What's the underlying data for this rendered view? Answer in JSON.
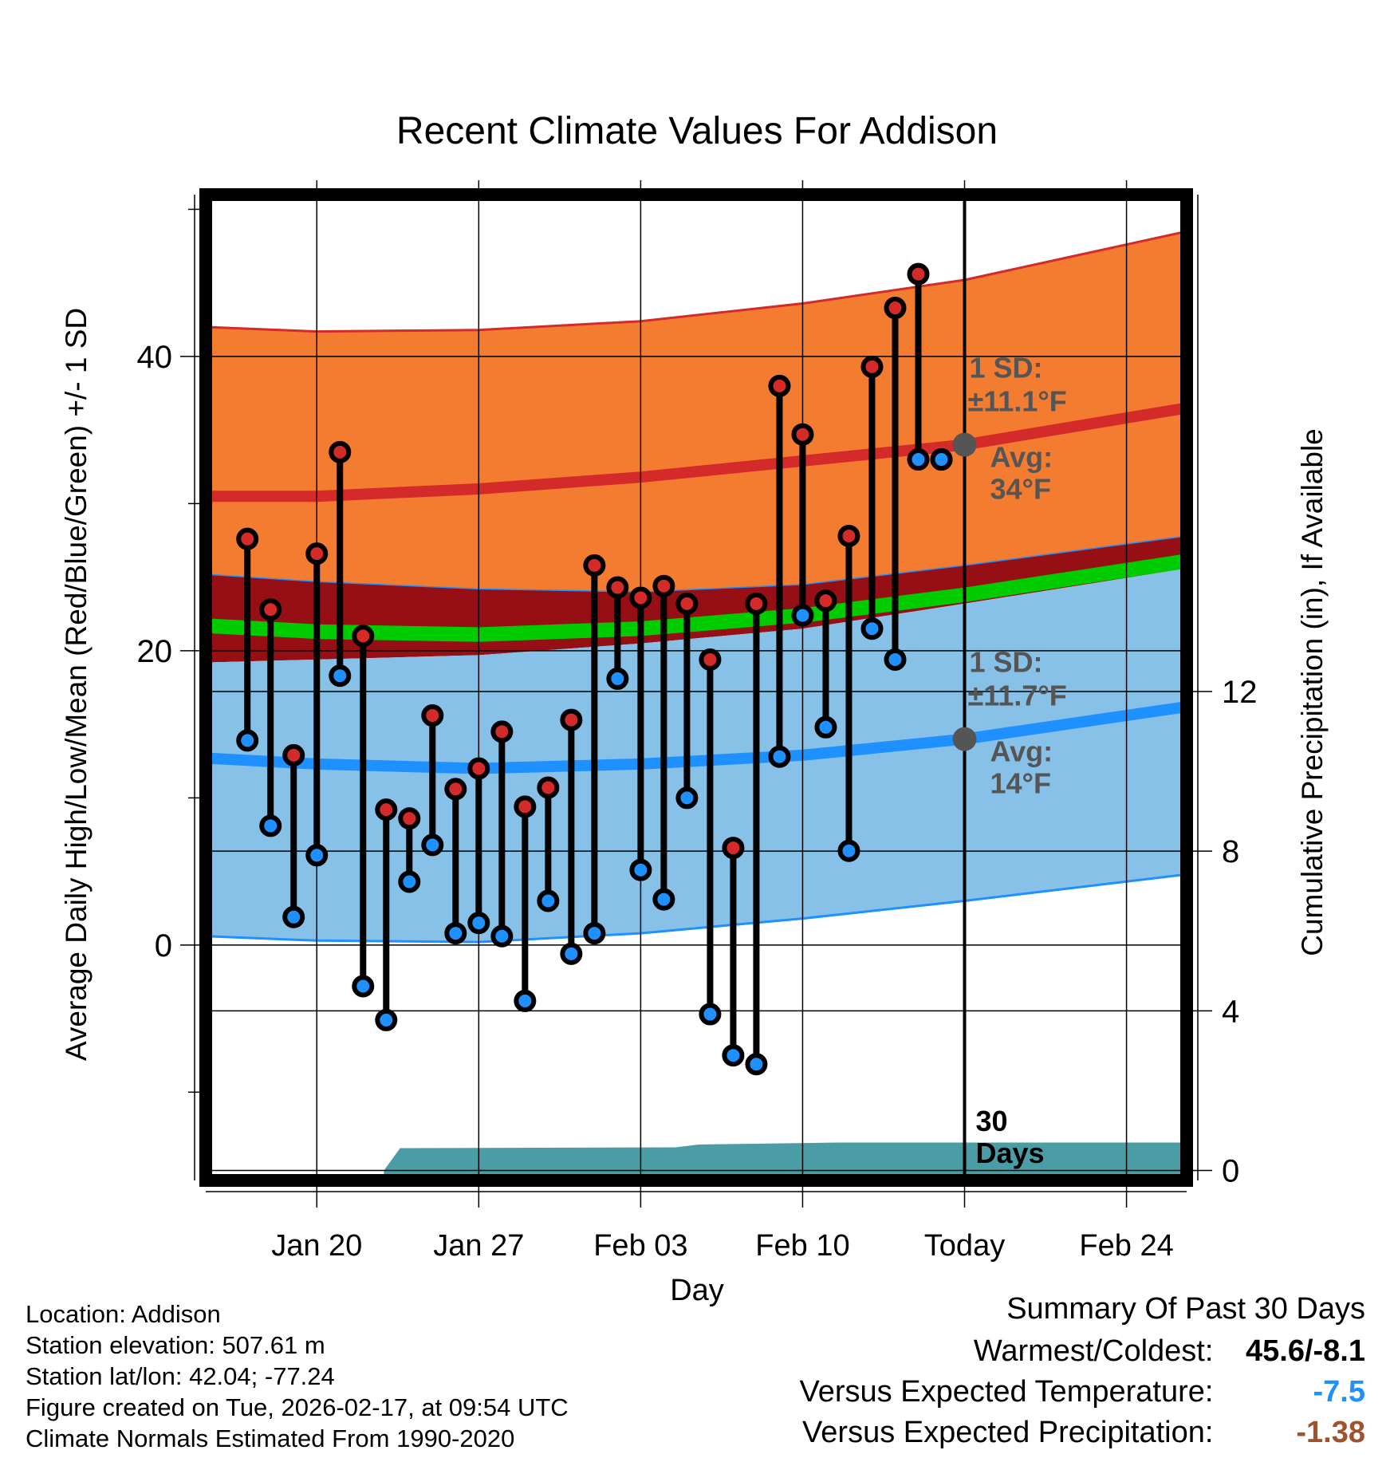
{
  "chart_data": {
    "type": "line",
    "title": "Recent Climate Values For Addison",
    "xlabel": "Day",
    "ylabel": "Average Daily High/Low/Mean (Red/Blue/Green) +/- 1 SD",
    "y2label": "Cumulative Precipitation (in), If Available",
    "xlim": [
      15.2,
      57.6
    ],
    "ylim": [
      -16,
      51
    ],
    "y2lim": [
      -0.25,
      24.45
    ],
    "x_ticks": [
      {
        "day": 20,
        "label": "Jan 20"
      },
      {
        "day": 27,
        "label": "Jan 27"
      },
      {
        "day": 34,
        "label": "Feb 03"
      },
      {
        "day": 41,
        "label": "Feb 10"
      },
      {
        "day": 48,
        "label": "Today"
      },
      {
        "day": 55,
        "label": "Feb 24"
      }
    ],
    "y_ticks": [
      0,
      20,
      40
    ],
    "y2_ticks": [
      0,
      4,
      8,
      12
    ],
    "grid": true,
    "today_day": 48,
    "today_label": "30 Days",
    "normals": {
      "x": [
        15.2,
        20,
        27,
        34,
        41,
        48,
        57.6
      ],
      "high_mean": [
        30.5,
        30.5,
        31.0,
        31.8,
        32.9,
        34.0,
        36.5
      ],
      "high_upper": [
        42.0,
        41.7,
        41.8,
        42.4,
        43.6,
        45.2,
        48.5
      ],
      "high_lower": [
        25.2,
        24.7,
        24.2,
        24.0,
        24.5,
        25.8,
        27.8
      ],
      "mean_upper": [
        22.2,
        21.8,
        21.6,
        22.0,
        22.9,
        24.3,
        26.6
      ],
      "mean_lower": [
        21.2,
        20.8,
        20.6,
        21.0,
        21.9,
        23.3,
        25.6
      ],
      "low_mean": [
        12.7,
        12.3,
        12.0,
        12.3,
        12.9,
        14.0,
        16.2
      ],
      "low_upper": [
        19.2,
        19.4,
        19.7,
        20.5,
        21.5,
        23.2,
        25.6
      ],
      "low_lower": [
        0.6,
        0.3,
        0.2,
        0.8,
        1.8,
        3.0,
        4.8
      ]
    },
    "series": [
      {
        "name": "Daily High",
        "color": "#d42a2a",
        "x": [
          17,
          18,
          19,
          20,
          21,
          22,
          23,
          24,
          25,
          26,
          27,
          28,
          29,
          30,
          31,
          32,
          33,
          34,
          35,
          36,
          37,
          38,
          39,
          40,
          41,
          42,
          43,
          44,
          45,
          46,
          47
        ],
        "values": [
          27.6,
          22.8,
          12.9,
          26.6,
          33.5,
          21.0,
          9.2,
          8.6,
          15.6,
          10.6,
          12.0,
          14.5,
          9.4,
          10.7,
          15.3,
          25.8,
          24.3,
          23.6,
          24.4,
          23.2,
          19.4,
          6.6,
          23.2,
          38.0,
          34.7,
          23.4,
          27.8,
          39.3,
          43.3,
          45.6,
          33.0
        ],
        "label_x": [],
        "label_y": []
      },
      {
        "name": "Daily Low",
        "color": "#1e90ff",
        "x": [
          17,
          18,
          19,
          20,
          21,
          22,
          23,
          24,
          25,
          26,
          27,
          28,
          29,
          30,
          31,
          32,
          33,
          34,
          35,
          36,
          37,
          38,
          39,
          40,
          41,
          42,
          43,
          44,
          45,
          46,
          47
        ],
        "values": [
          13.9,
          8.1,
          1.9,
          6.1,
          18.3,
          -2.8,
          -5.1,
          4.3,
          6.8,
          0.8,
          1.5,
          0.6,
          -3.8,
          3.0,
          -0.6,
          0.8,
          18.1,
          5.1,
          3.1,
          10.0,
          -4.7,
          -7.5,
          -8.1,
          12.8,
          22.4,
          14.8,
          6.4,
          21.5,
          19.4,
          33.0,
          33.0
        ]
      },
      {
        "name": "Cumulative Precipitation",
        "color": "#4a9da5",
        "x": [
          22.9,
          23.6,
          35.5,
          36.5,
          42.5,
          57.6
        ],
        "values": [
          0.0,
          0.56,
          0.58,
          0.65,
          0.7,
          0.7
        ]
      }
    ],
    "annotations": {
      "high_sd": "1 SD:",
      "high_sd_value": "±11.1°F",
      "high_avg": "Avg:",
      "high_avg_value": "34°F",
      "high_avg_temp": 34.0,
      "low_sd": "1 SD:",
      "low_sd_value": "±11.7°F",
      "low_avg": "Avg:",
      "low_avg_value": "14°F",
      "low_avg_temp": 14.0
    }
  },
  "station": {
    "location": "Location: Addison",
    "elevation": "Station elevation: 507.61 m",
    "latlon": "Station lat/lon: 42.04; -77.24",
    "created": "Figure created on Tue, 2026-02-17, at 09:54 UTC",
    "normals": "Climate Normals Estimated From 1990-2020"
  },
  "summary": {
    "title": "Summary Of Past 30 Days",
    "warmest_label": "Warmest/Coldest:",
    "warmest_value": "45.6/-8.1",
    "temp_label": "Versus Expected Temperature:",
    "temp_value": "-7.5",
    "temp_color": "#1e90ff",
    "precip_label": "Versus Expected Precipitation:",
    "precip_value": "-1.38",
    "precip_color": "#a0522d"
  },
  "colors": {
    "high_band": "#f47c30",
    "high_line": "#d42a2a",
    "dark_red_band": "#960f14",
    "mean_band": "#00cc00",
    "low_band": "#87c1e8",
    "low_line": "#1e90ff",
    "precip": "#4a9da5",
    "annotation": "#555555"
  }
}
